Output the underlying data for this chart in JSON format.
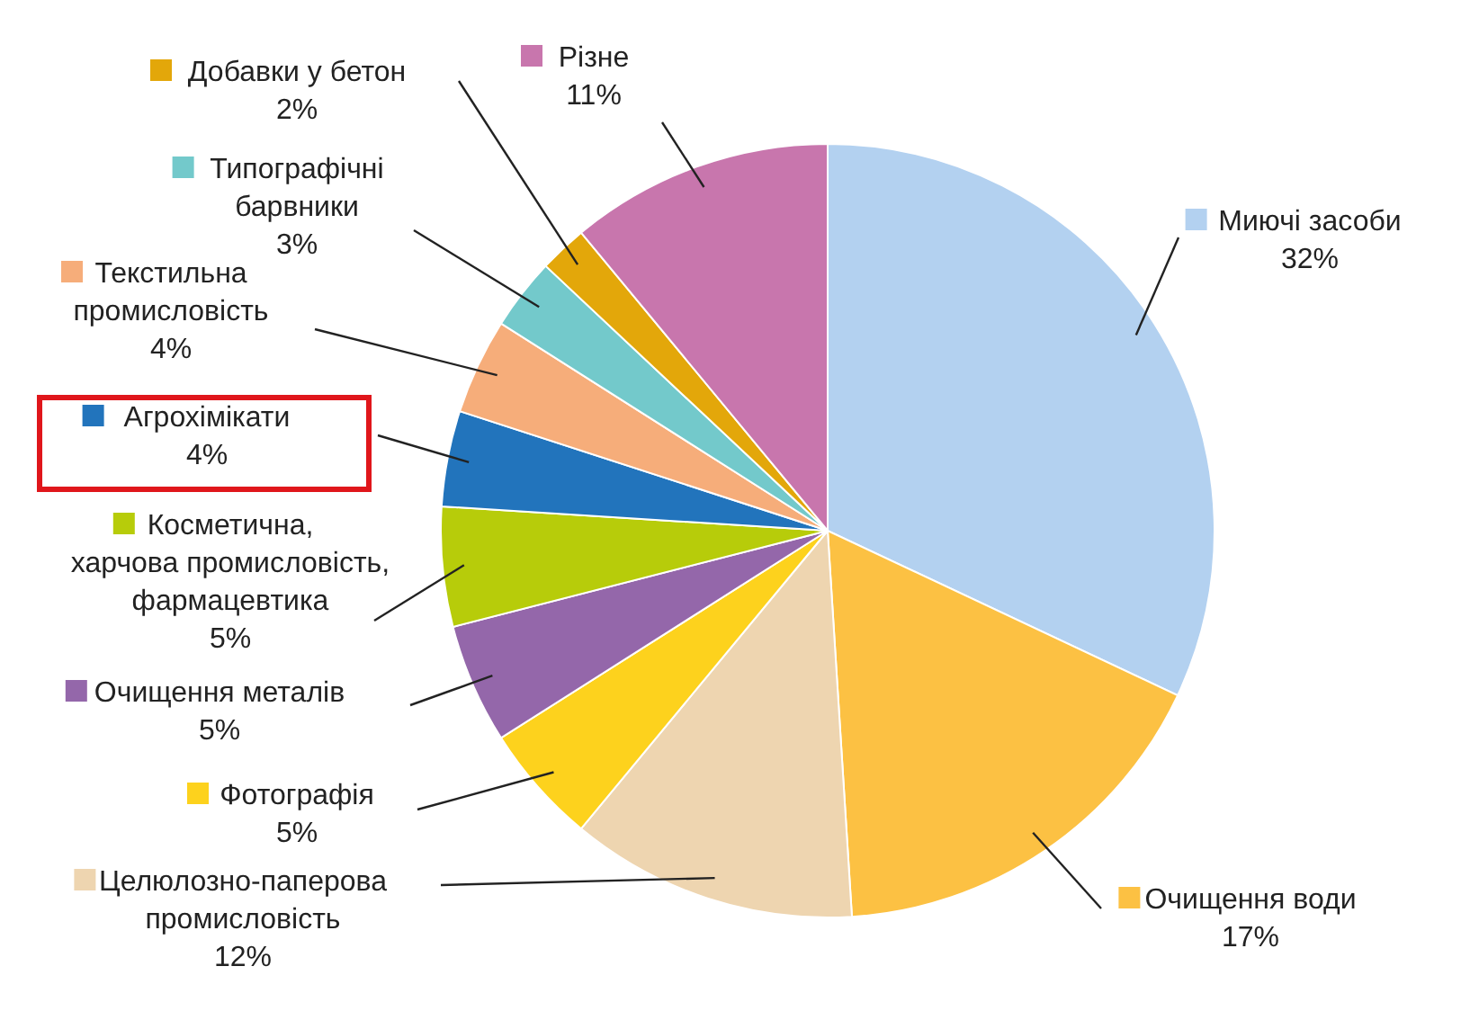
{
  "chart_data": {
    "type": "pie",
    "categories": [
      "Миючі засоби",
      "Очищення води",
      "Целюлозно-паперова промисловість",
      "Фотографія",
      "Очищення металів",
      "Косметична, харчова промисловість, фармацевтика",
      "Агрохімікати",
      "Текстильна промисловість",
      "Типографічні барвники",
      "Добавки у бетон",
      "Різне"
    ],
    "values": [
      32,
      17,
      12,
      5,
      5,
      5,
      4,
      4,
      3,
      2,
      11
    ],
    "colors": [
      "#b3d1f0",
      "#fcc143",
      "#eed5b0",
      "#fdd21d",
      "#9467aa",
      "#b7cc0a",
      "#2274bc",
      "#f6ad7a",
      "#73c9cb",
      "#e3a70a",
      "#c876ad"
    ],
    "value_labels": [
      "32%",
      "17%",
      "12%",
      "5%",
      "5%",
      "5%",
      "4%",
      "4%",
      "3%",
      "2%",
      "11%"
    ],
    "legend": "left"
  }
}
